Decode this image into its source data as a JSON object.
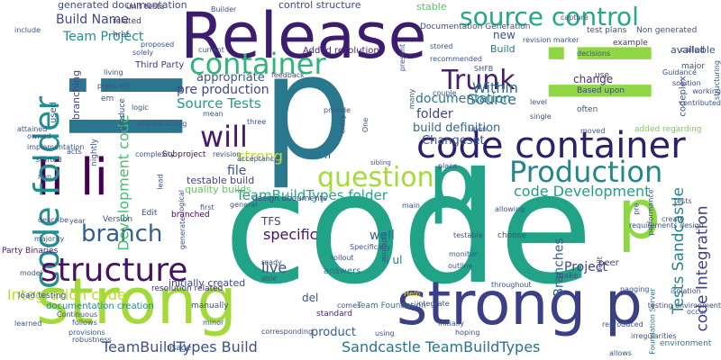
{
  "words": [
    {
      "text": "code",
      "color": "#20a386"
    },
    {
      "text": "li",
      "color": "#2a768e"
    },
    {
      "text": "p",
      "color": "#2a788e"
    },
    {
      "text": "li",
      "color": "#8fd744"
    },
    {
      "text": "Release",
      "color": "#3b1c6f"
    },
    {
      "text": "strong p",
      "color": "#3b3f86"
    },
    {
      "text": "p",
      "color": "#8fd744"
    },
    {
      "text": "strong",
      "color": "#a3d93a"
    },
    {
      "text": "p",
      "color": "#20a386"
    },
    {
      "text": "li li",
      "color": "#440154"
    },
    {
      "text": "code container",
      "color": "#2d1f6b"
    },
    {
      "text": "code folder",
      "color": "#218f8d"
    },
    {
      "text": "source control",
      "color": "#22a884"
    },
    {
      "text": "Production",
      "color": "#25858e"
    },
    {
      "text": "structure",
      "color": "#471164"
    },
    {
      "text": "container",
      "color": "#2fb47c"
    },
    {
      "text": "question",
      "color": "#a5db36"
    },
    {
      "text": "Trunk",
      "color": "#481f70"
    },
    {
      "text": "will",
      "color": "#481a6c"
    },
    {
      "text": "branch",
      "color": "#345f8d"
    },
    {
      "text": "Development code",
      "color": "#44bf70"
    },
    {
      "text": "code Integration",
      "color": "#424086"
    },
    {
      "text": "Tests Sandcastle",
      "color": "#25858e"
    },
    {
      "text": "Integration code",
      "color": "#b5de2b"
    },
    {
      "text": "code Development",
      "color": "#1fa188"
    },
    {
      "text": "TeamBuildTypes folder",
      "color": "#22a785"
    },
    {
      "text": "Sandcastle TeamBuildTypes",
      "color": "#2c728e"
    },
    {
      "text": "TeamBuildTypes Build",
      "color": "#3b528b"
    },
    {
      "text": "Branches",
      "color": "#355f8d"
    },
    {
      "text": "folder",
      "color": "#3e4989"
    },
    {
      "text": "specific",
      "color": "#471365"
    },
    {
      "text": "live",
      "color": "#3d4e8a"
    },
    {
      "text": "Source",
      "color": "#2d718e"
    },
    {
      "text": "Within",
      "color": "#2c738e"
    },
    {
      "text": "documentation",
      "color": "#2a788e"
    },
    {
      "text": "build definition",
      "color": "#31688e"
    },
    {
      "text": "Changeset",
      "color": "#3a538b"
    },
    {
      "text": "Source Tests",
      "color": "#1f9d8a"
    },
    {
      "text": "pre production",
      "color": "#3f4788"
    },
    {
      "text": "strong",
      "color": "#c0df25"
    },
    {
      "text": "ul li",
      "color": "#2e6e8e"
    },
    {
      "text": "file",
      "color": "#39558c"
    },
    {
      "text": "testable build",
      "color": "#433e85"
    },
    {
      "text": "quality builds",
      "color": "#5ec962"
    },
    {
      "text": "Team Project",
      "color": "#21908d"
    },
    {
      "text": "Build Name",
      "color": "#3f4889"
    },
    {
      "text": "generated documentation",
      "color": "#3f4889"
    },
    {
      "text": "well",
      "color": "#30678d"
    },
    {
      "text": "li ul",
      "color": "#2a788e"
    },
    {
      "text": "Project",
      "color": "#404588"
    },
    {
      "text": "TFS",
      "color": "#414287"
    },
    {
      "text": "product",
      "color": "#355e8d"
    },
    {
      "text": "del",
      "color": "#3b528b"
    },
    {
      "text": "new",
      "color": "#39568c"
    },
    {
      "text": "appropriate",
      "color": "#375a8c"
    },
    {
      "text": "change",
      "color": "#46307e"
    },
    {
      "text": "Added resolution",
      "color": "#482576"
    },
    {
      "text": "control structure",
      "color": "#3f4889"
    },
    {
      "text": "stable",
      "color": "#56c667"
    },
    {
      "text": "Documentation Generation",
      "color": "#3b528b"
    },
    {
      "text": "Build",
      "color": "#2c718e"
    },
    {
      "text": "environment",
      "color": "#2a788e"
    },
    {
      "text": "initially created",
      "color": "#3f4788"
    },
    {
      "text": "resolution related",
      "color": "#46337f"
    },
    {
      "text": "documentation creation",
      "color": "#25848e"
    },
    {
      "text": "Team Foundation",
      "color": "#2c738e"
    },
    {
      "text": "Foundation Server",
      "color": "#2c728e"
    },
    {
      "text": "testing environment",
      "color": "#3e4a89"
    },
    {
      "text": "used",
      "color": "#39568c"
    },
    {
      "text": "branching",
      "color": "#3e4989"
    },
    {
      "text": "Third Party",
      "color": "#443983"
    },
    {
      "text": "Subproject",
      "color": "#471063"
    },
    {
      "text": "load testing",
      "color": "#3b528b"
    },
    {
      "text": "Party Binaries",
      "color": "#481b6d"
    },
    {
      "text": "design documents",
      "color": "#3f4889"
    },
    {
      "text": "answers",
      "color": "#2e6e8e"
    },
    {
      "text": "standard",
      "color": "#482878"
    },
    {
      "text": "peer",
      "color": "#414487"
    },
    {
      "text": "added regarding",
      "color": "#7ad151"
    },
    {
      "text": "available",
      "color": "#3b528b"
    },
    {
      "text": "codeplex",
      "color": "#3b528b"
    },
    {
      "text": "manually",
      "color": "#3b528b"
    },
    {
      "text": "Based upon",
      "color": "#3f4889"
    },
    {
      "text": "unit tests",
      "color": "#453781"
    },
    {
      "text": "related",
      "color": "#46327e"
    },
    {
      "text": "href",
      "color": "#404688"
    },
    {
      "text": "single",
      "color": "#3b528b"
    },
    {
      "text": "level",
      "color": "#3b528b"
    },
    {
      "text": "solution",
      "color": "#3f4889"
    },
    {
      "text": "major",
      "color": "#3b528b"
    },
    {
      "text": "called",
      "color": "#3b528b"
    },
    {
      "text": "example",
      "color": "#453781"
    },
    {
      "text": "test plans",
      "color": "#3b528b"
    },
    {
      "text": "Non generated",
      "color": "#3b528b"
    },
    {
      "text": "use",
      "color": "#453781"
    },
    {
      "text": "em",
      "color": "#3b528b"
    },
    {
      "text": "Edit",
      "color": "#3b528b"
    },
    {
      "text": "Version",
      "color": "#3b528b"
    },
    {
      "text": "branched",
      "color": "#440154"
    },
    {
      "text": "first",
      "color": "#3b528b"
    },
    {
      "text": "minor",
      "color": "#3b528b"
    },
    {
      "text": "Help",
      "color": "#fde725"
    },
    {
      "text": "nagging",
      "color": "#3b528b"
    },
    {
      "text": "make",
      "color": "#3b528b"
    },
    {
      "text": "choose",
      "color": "#3b528b"
    },
    {
      "text": "throughout",
      "color": "#3b528b"
    },
    {
      "text": "monitor",
      "color": "#3b528b"
    },
    {
      "text": "allowing",
      "color": "#3b528b"
    },
    {
      "text": "create",
      "color": "#3b528b"
    },
    {
      "text": "isolation",
      "color": "#3b528b"
    },
    {
      "text": "rollout",
      "color": "#3b528b"
    },
    {
      "text": "outline",
      "color": "#3b528b"
    },
    {
      "text": "Specifically",
      "color": "#3b528b"
    },
    {
      "text": "usage",
      "color": "#3b528b"
    },
    {
      "text": "reproduced",
      "color": "#3b528b"
    },
    {
      "text": "irregularities",
      "color": "#3b528b"
    },
    {
      "text": "allows",
      "color": "#3b528b"
    },
    {
      "text": "follows",
      "color": "#3b528b"
    },
    {
      "text": "provisions",
      "color": "#3b528b"
    },
    {
      "text": "robustness",
      "color": "#3b528b"
    },
    {
      "text": "Continuous",
      "color": "#3b528b"
    },
    {
      "text": "learned",
      "color": "#3b528b"
    },
    {
      "text": "majority",
      "color": "#3b528b"
    },
    {
      "text": "comes",
      "color": "#3b528b"
    },
    {
      "text": "integrate",
      "color": "#3b528b"
    },
    {
      "text": "testable",
      "color": "#3b528b"
    },
    {
      "text": "corresponding",
      "color": "#3b528b"
    },
    {
      "text": "able",
      "color": "#3b528b"
    },
    {
      "text": "ready",
      "color": "#3b528b"
    },
    {
      "text": "started",
      "color": "#3b528b"
    },
    {
      "text": "implementation",
      "color": "#3b528b"
    },
    {
      "text": "owned",
      "color": "#3b528b"
    },
    {
      "text": "attained",
      "color": "#3b528b"
    },
    {
      "text": "nightly",
      "color": "#3b528b"
    },
    {
      "text": "acts",
      "color": "#3b528b"
    },
    {
      "text": "complexity",
      "color": "#3b528b"
    },
    {
      "text": "generate",
      "color": "#3b528b"
    },
    {
      "text": "lead",
      "color": "#3b528b"
    },
    {
      "text": "logical",
      "color": "#3b528b"
    },
    {
      "text": "revision",
      "color": "#3b528b"
    },
    {
      "text": "acceptance",
      "color": "#3b528b"
    },
    {
      "text": "sibling",
      "color": "#3b528b"
    },
    {
      "text": "place",
      "color": "#3b528b"
    },
    {
      "text": "initially",
      "color": "#3b528b"
    },
    {
      "text": "using",
      "color": "#3b528b"
    },
    {
      "text": "hoping",
      "color": "#3b528b"
    },
    {
      "text": "couple",
      "color": "#3b528b"
    },
    {
      "text": "entry",
      "color": "#3b528b"
    },
    {
      "text": "provide",
      "color": "#3b528b"
    },
    {
      "text": "three",
      "color": "#3b528b"
    },
    {
      "text": "mean",
      "color": "#3b528b"
    },
    {
      "text": "standardizing",
      "color": "#3b528b"
    },
    {
      "text": "produce",
      "color": "#3b528b"
    },
    {
      "text": "logic",
      "color": "#3b528b"
    },
    {
      "text": "plans etc",
      "color": "#3b528b"
    },
    {
      "text": "proposed",
      "color": "#3b528b"
    },
    {
      "text": "solely",
      "color": "#3b528b"
    },
    {
      "text": "current",
      "color": "#3b528b"
    },
    {
      "text": "Builder",
      "color": "#3b528b"
    },
    {
      "text": "include",
      "color": "#3b528b"
    },
    {
      "text": "living",
      "color": "#3b528b"
    },
    {
      "text": "feedback",
      "color": "#3b528b"
    },
    {
      "text": "One",
      "color": "#3b528b"
    },
    {
      "text": "many",
      "color": "#3b528b"
    },
    {
      "text": "upon",
      "color": "#3b528b"
    },
    {
      "text": "moved",
      "color": "#3b528b"
    },
    {
      "text": "often",
      "color": "#3b528b"
    },
    {
      "text": "working",
      "color": "#3b528b"
    },
    {
      "text": "contributed",
      "color": "#3b528b"
    },
    {
      "text": "Guidance",
      "color": "#3b528b"
    },
    {
      "text": "structuring",
      "color": "#3b528b"
    },
    {
      "text": "decisions",
      "color": "#3b528b"
    },
    {
      "text": "capture",
      "color": "#3b528b"
    },
    {
      "text": "revision marker",
      "color": "#3b528b"
    },
    {
      "text": "recommended",
      "color": "#3b528b"
    },
    {
      "text": "SHFB",
      "color": "#3b528b"
    },
    {
      "text": "stored",
      "color": "#3b528b"
    },
    {
      "text": "present",
      "color": "#3b528b"
    },
    {
      "text": "multiple",
      "color": "#3b528b"
    },
    {
      "text": "performance",
      "color": "#3b528b"
    },
    {
      "text": "requirements design",
      "color": "#3b528b"
    },
    {
      "text": "built",
      "color": "#3b528b"
    },
    {
      "text": "occur",
      "color": "#3b528b"
    },
    {
      "text": "describe",
      "color": "#3b528b"
    },
    {
      "text": "year",
      "color": "#3b528b"
    },
    {
      "text": "non",
      "color": "#3b528b"
    },
    {
      "text": "model",
      "color": "#3b528b"
    },
    {
      "text": "pre",
      "color": "#3b528b"
    },
    {
      "text": "tests",
      "color": "#3b528b"
    },
    {
      "text": "general",
      "color": "#3b528b"
    },
    {
      "text": "main",
      "color": "#3b528b"
    },
    {
      "text": "Team",
      "color": "#3b528b"
    },
    {
      "text": "start",
      "color": "#3b528b"
    }
  ]
}
